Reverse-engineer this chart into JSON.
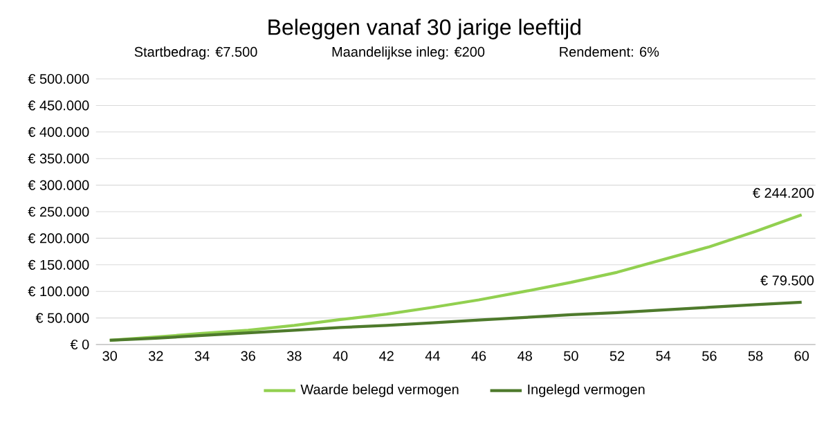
{
  "chart_data": {
    "type": "line",
    "title": "Beleggen vanaf 30 jarige leeftijd",
    "subtitle": "Startbedrag: €7.500      Maandelijkse inleg: €200      Rendement: 6%",
    "x": [
      30,
      32,
      34,
      36,
      38,
      40,
      42,
      44,
      46,
      48,
      50,
      52,
      54,
      56,
      58,
      60
    ],
    "series": [
      {
        "name": "Waarde belegd vermogen",
        "color": "#92d050",
        "values": [
          8000,
          14000,
          21000,
          27000,
          36000,
          47000,
          57000,
          70000,
          84000,
          100000,
          117000,
          136000,
          160000,
          184000,
          213000,
          244200
        ]
      },
      {
        "name": "Ingelegd vermogen",
        "color": "#4e7a2c",
        "values": [
          8000,
          12000,
          17000,
          22000,
          27000,
          32000,
          36000,
          41000,
          46000,
          51000,
          56000,
          60000,
          65000,
          70000,
          75000,
          79500
        ]
      }
    ],
    "xlim": [
      29.4,
      60.6
    ],
    "xticks": [
      30,
      32,
      34,
      36,
      38,
      40,
      42,
      44,
      46,
      48,
      50,
      52,
      54,
      56,
      58,
      60
    ],
    "ylim": [
      0,
      500000
    ],
    "yticks": [
      {
        "value": 0,
        "label": "€ 0"
      },
      {
        "value": 50000,
        "label": "€ 50.000"
      },
      {
        "value": 100000,
        "label": "€ 100.000"
      },
      {
        "value": 150000,
        "label": "€ 150.000"
      },
      {
        "value": 200000,
        "label": "€ 200.000"
      },
      {
        "value": 250000,
        "label": "€ 250.000"
      },
      {
        "value": 300000,
        "label": "€ 300.000"
      },
      {
        "value": 350000,
        "label": "€ 350.000"
      },
      {
        "value": 400000,
        "label": "€ 400.000"
      },
      {
        "value": 450000,
        "label": "€ 450.000"
      },
      {
        "value": 500000,
        "label": "€ 500.000"
      }
    ],
    "annotations": [
      {
        "text": "€ 244.200",
        "x": 60,
        "y": 244200
      },
      {
        "text": "€ 79.500",
        "x": 60,
        "y": 79500
      }
    ],
    "grid": "y",
    "legend": "bottom",
    "marker": "none",
    "line_style": "solid"
  }
}
